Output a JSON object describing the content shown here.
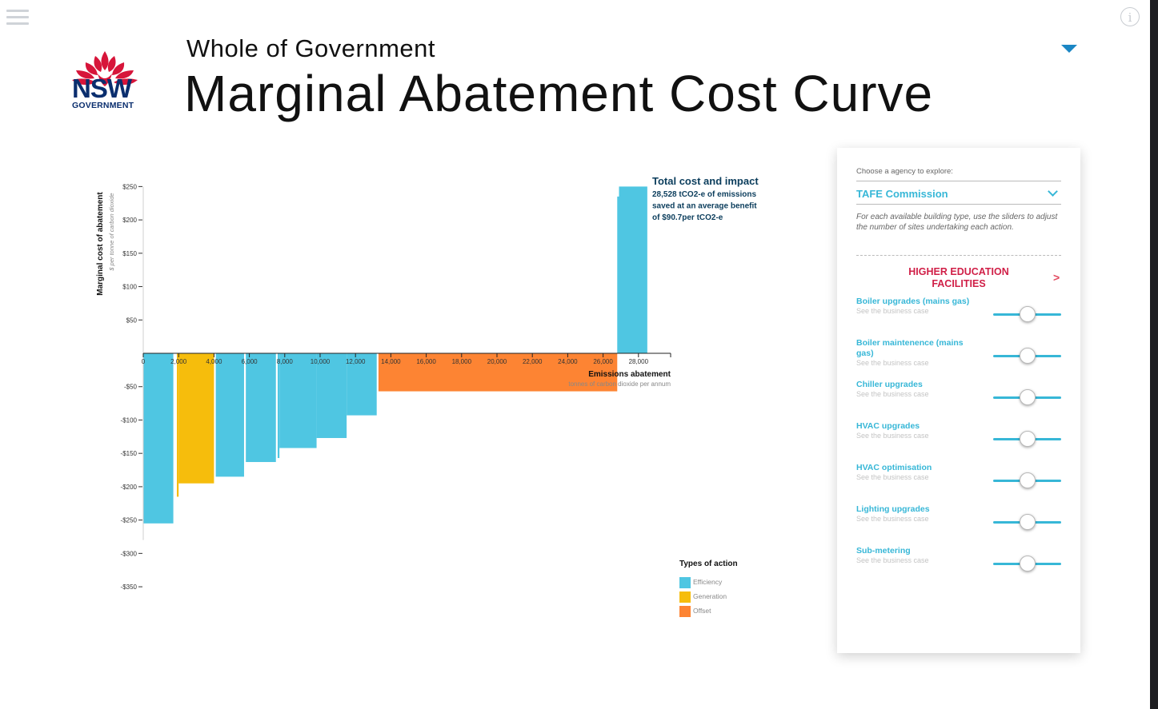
{
  "header": {
    "logo_text": "NSW",
    "logo_subtext": "GOVERNMENT",
    "supertitle": "Whole of Government",
    "title": "Marginal Abatement Cost Curve"
  },
  "icons": {
    "menu": "hamburger-menu-icon",
    "info": "info-icon",
    "dropdown": "caret-down-icon"
  },
  "colors": {
    "efficiency": "#4fc6e2",
    "generation": "#f6bd0c",
    "offset": "#fd8433",
    "accent": "#37b7d7",
    "section": "#d01f47"
  },
  "panel": {
    "choose_label": "Choose a agency to explore:",
    "agency_selected": "TAFE Commission",
    "hint": "For each available building type, use the sliders to adjust the number of sites undertaking each action.",
    "section_title": "HIGHER EDUCATION FACILITIES",
    "section_arrow": ">",
    "actions": [
      {
        "name": "Boiler upgrades (mains gas)",
        "link": "See the business case",
        "slider_fraction": 0.5
      },
      {
        "name": "Boiler maintenence (mains gas)",
        "link": "See the business case",
        "slider_fraction": 0.5
      },
      {
        "name": "Chiller upgrades",
        "link": "See the business case",
        "slider_fraction": 0.5
      },
      {
        "name": "HVAC upgrades",
        "link": "See the business case",
        "slider_fraction": 0.5
      },
      {
        "name": "HVAC optimisation",
        "link": "See the business case",
        "slider_fraction": 0.5
      },
      {
        "name": "Lighting upgrades",
        "link": "See the business case",
        "slider_fraction": 0.5
      },
      {
        "name": "Sub-metering",
        "link": "See the business case",
        "slider_fraction": 0.5
      }
    ]
  },
  "chart_data": {
    "type": "bar",
    "ylabel": "Marginal cost of abatement",
    "ylabel_sub": "$ per tonne of carbon dioxide",
    "xlabel": "Emissions abatement",
    "xlabel_sub": "tonnes of carbon dioxide per annum",
    "xlim": [
      0,
      29000
    ],
    "ylim": [
      -350,
      250
    ],
    "x_ticks": [
      0,
      2000,
      4000,
      6000,
      8000,
      10000,
      12000,
      14000,
      16000,
      18000,
      20000,
      22000,
      24000,
      26000,
      28000
    ],
    "x_tick_labels": [
      "0",
      "2,000",
      "4,000",
      "6,000",
      "8,000",
      "10,000",
      "12,000",
      "14,000",
      "16,000",
      "18,000",
      "20,000",
      "22,000",
      "24,000",
      "26,000",
      "28,000"
    ],
    "y_ticks": [
      250,
      200,
      150,
      100,
      50,
      -50,
      -100,
      -150,
      -200,
      -250,
      -300,
      -350
    ],
    "y_tick_labels": [
      "$250",
      "$200",
      "$150",
      "$100",
      "$50",
      "-$50",
      "-$100",
      "-$150",
      "-$200",
      "-$250",
      "-$300",
      "-$350"
    ],
    "bars": [
      {
        "x0": 0,
        "x1": 1700,
        "value": -255,
        "type": "efficiency"
      },
      {
        "x0": 1900,
        "x1": 2000,
        "value": -215,
        "type": "generation"
      },
      {
        "x0": 2000,
        "x1": 4000,
        "value": -195,
        "type": "generation"
      },
      {
        "x0": 4100,
        "x1": 5700,
        "value": -185,
        "type": "efficiency"
      },
      {
        "x0": 5800,
        "x1": 7500,
        "value": -163,
        "type": "efficiency"
      },
      {
        "x0": 7600,
        "x1": 7700,
        "value": -157,
        "type": "efficiency"
      },
      {
        "x0": 7700,
        "x1": 9800,
        "value": -142,
        "type": "efficiency"
      },
      {
        "x0": 9800,
        "x1": 11500,
        "value": -127,
        "type": "efficiency"
      },
      {
        "x0": 11500,
        "x1": 13200,
        "value": -93,
        "type": "efficiency"
      },
      {
        "x0": 13300,
        "x1": 26800,
        "value": -57,
        "type": "offset"
      },
      {
        "x0": 26800,
        "x1": 26900,
        "value": 235,
        "type": "efficiency"
      },
      {
        "x0": 26900,
        "x1": 28500,
        "value": 250,
        "type": "efficiency"
      }
    ],
    "annotation": {
      "title": "Total cost and impact",
      "lines": [
        "28,528 tCO2-e of emissions",
        "saved at an average benefit",
        "of $90.7per tCO2-e"
      ]
    },
    "legend": {
      "title": "Types of action",
      "items": [
        {
          "label": "Efficiency",
          "type": "efficiency"
        },
        {
          "label": "Generation",
          "type": "generation"
        },
        {
          "label": "Offset",
          "type": "offset"
        }
      ]
    }
  }
}
